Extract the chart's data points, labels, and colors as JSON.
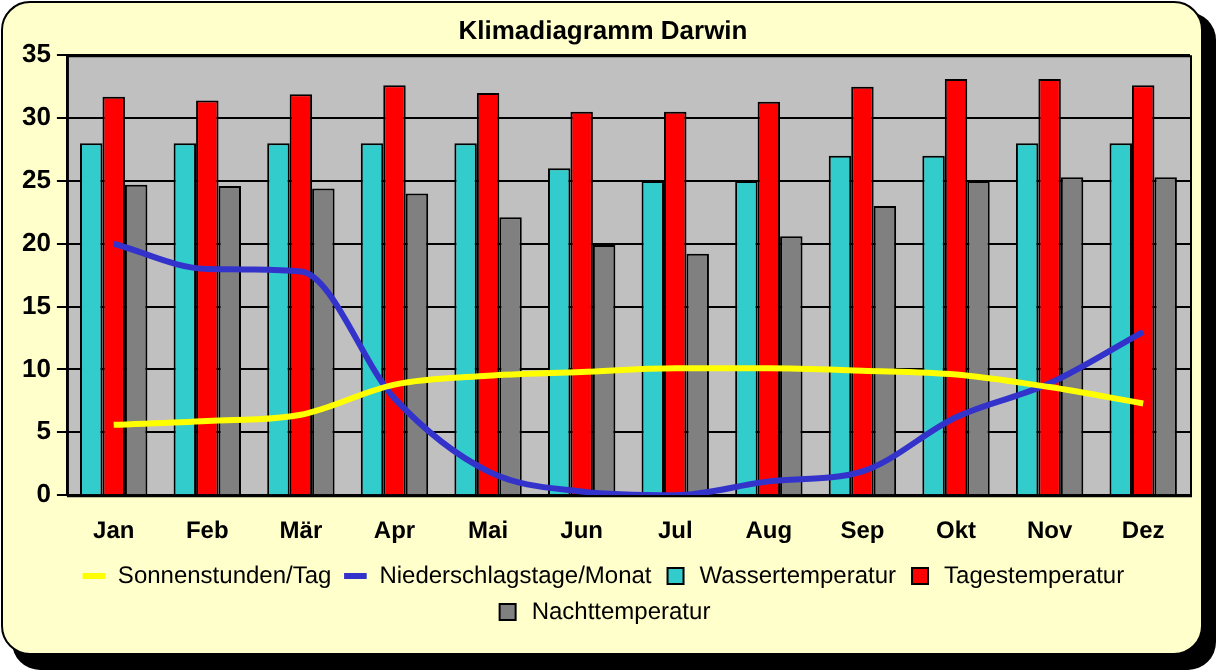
{
  "chart_data": {
    "type": "bar",
    "title": "Klimadiagramm Darwin",
    "categories": [
      "Jan",
      "Feb",
      "Mär",
      "Apr",
      "Mai",
      "Jun",
      "Jul",
      "Aug",
      "Sep",
      "Okt",
      "Nov",
      "Dez"
    ],
    "series": [
      {
        "name": "Wassertemperatur",
        "color": "#33cccc",
        "values": [
          28,
          28,
          28,
          28,
          28,
          26,
          25,
          25,
          27,
          27,
          28,
          28
        ]
      },
      {
        "name": "Tagestemperatur",
        "color": "#ff0000",
        "values": [
          31.7,
          31.4,
          31.9,
          32.6,
          32,
          30.5,
          30.5,
          31.3,
          32.5,
          33.1,
          33.1,
          32.6
        ]
      },
      {
        "name": "Nachttemperatur",
        "color": "#808080",
        "values": [
          24.7,
          24.6,
          24.4,
          24,
          22.1,
          19.9,
          19.2,
          20.6,
          23,
          25,
          25.3,
          25.3
        ]
      },
      {
        "name": "Sonnenstunden/Tag",
        "type": "line",
        "color": "#ffff00",
        "values": [
          5.6,
          5.9,
          6.4,
          8.8,
          9.5,
          9.8,
          10.1,
          10.1,
          9.9,
          9.6,
          8.6,
          7.3
        ]
      },
      {
        "name": "Niederschlagstage/Monat",
        "type": "line",
        "color": "#3333cc",
        "values": [
          20,
          18,
          17.8,
          7.7,
          1.9,
          0.3,
          0,
          1.1,
          1.9,
          6.2,
          8.9,
          13
        ]
      }
    ],
    "ylim": [
      0,
      35
    ],
    "yticks": [
      0,
      5,
      10,
      15,
      20,
      25,
      30,
      35
    ],
    "grid": "y",
    "legend": "bottom",
    "marker": "none"
  }
}
